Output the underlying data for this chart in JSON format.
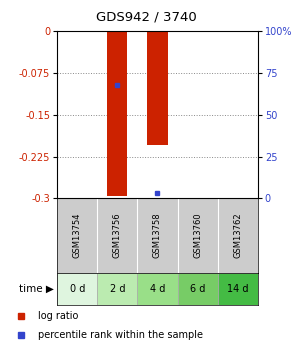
{
  "title": "GDS942 / 3740",
  "samples": [
    "GSM13754",
    "GSM13756",
    "GSM13758",
    "GSM13760",
    "GSM13762"
  ],
  "time_labels": [
    "0 d",
    "2 d",
    "4 d",
    "6 d",
    "14 d"
  ],
  "log_ratios": [
    0,
    -0.295,
    -0.205,
    0,
    0
  ],
  "percentile_ranks_pct": [
    null,
    68.0,
    3.0,
    null,
    null
  ],
  "bar_color": "#cc2200",
  "percentile_color": "#3344cc",
  "ylim_left": [
    -0.3,
    0
  ],
  "ylim_right": [
    0,
    100
  ],
  "yticks_left": [
    0,
    -0.075,
    -0.15,
    -0.225,
    -0.3
  ],
  "yticks_right": [
    0,
    25,
    50,
    75,
    100
  ],
  "left_tick_color": "#cc2200",
  "right_tick_color": "#3344cc",
  "grid_color": "#888888",
  "bg_color": "#ffffff",
  "header_bg": "#cccccc",
  "time_bgs": [
    "#dff5df",
    "#bbebb0",
    "#99df88",
    "#77cc66",
    "#44bb44"
  ],
  "bar_width": 0.5,
  "legend_log_label": "log ratio",
  "legend_pct_label": "percentile rank within the sample",
  "figsize": [
    2.93,
    3.45
  ],
  "dpi": 100
}
